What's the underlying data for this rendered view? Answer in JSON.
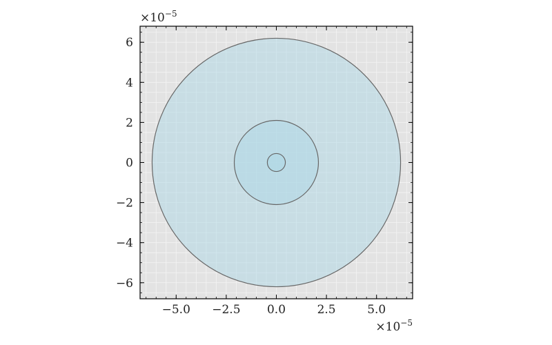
{
  "chart_data": {
    "type": "scatter",
    "shape": "concentric circles",
    "title": "",
    "xlabel": "",
    "ylabel": "",
    "x_multiplier": "×10",
    "x_exponent": "−5",
    "y_multiplier": "×10",
    "y_exponent": "−5",
    "xlim": [
      -6.8,
      6.8
    ],
    "ylim": [
      -6.8,
      6.8
    ],
    "x_ticks": [
      {
        "value": -5.0,
        "label": "−5.0"
      },
      {
        "value": -2.5,
        "label": "−2.5"
      },
      {
        "value": 0.0,
        "label": "0.0"
      },
      {
        "value": 2.5,
        "label": "2.5"
      },
      {
        "value": 5.0,
        "label": "5.0"
      }
    ],
    "y_ticks": [
      {
        "value": -6,
        "label": "−6"
      },
      {
        "value": -4,
        "label": "−4"
      },
      {
        "value": -2,
        "label": "−2"
      },
      {
        "value": 0,
        "label": "0"
      },
      {
        "value": 2,
        "label": "2"
      },
      {
        "value": 4,
        "label": "4"
      },
      {
        "value": 6,
        "label": "6"
      }
    ],
    "grid": true,
    "background_color": "#e3e3e3",
    "grid_color": "#f4f4f4",
    "circles": [
      {
        "center": [
          0,
          0
        ],
        "radius": 6.2,
        "fill": "#add8e6",
        "edge": "#666666"
      },
      {
        "center": [
          0,
          0
        ],
        "radius": 2.1,
        "fill": "#add8e6",
        "edge": "#666666"
      },
      {
        "center": [
          0,
          0
        ],
        "radius": 0.45,
        "fill": "#add8e6",
        "edge": "#666666"
      }
    ]
  }
}
